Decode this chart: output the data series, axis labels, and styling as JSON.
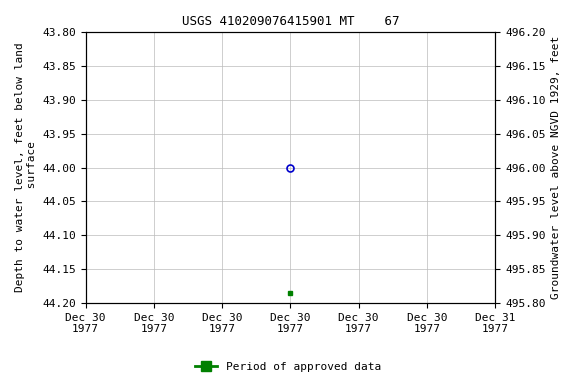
{
  "title": "USGS 410209076415901 MT    67",
  "left_ylabel": "Depth to water level, feet below land\n surface",
  "right_ylabel": "Groundwater level above NGVD 1929, feet",
  "ylim_left": [
    43.8,
    44.2
  ],
  "ylim_right_top": 496.2,
  "ylim_right_bottom": 495.8,
  "xlim": [
    0.0,
    6.0
  ],
  "x_data_blue": [
    3.0
  ],
  "y_data_blue": [
    44.0
  ],
  "x_data_green": [
    3.0
  ],
  "y_data_green": [
    44.185
  ],
  "xtick_positions": [
    0.0,
    1.0,
    2.0,
    3.0,
    4.0,
    5.0,
    6.0
  ],
  "xtick_labels": [
    "Dec 30\n1977",
    "Dec 30\n1977",
    "Dec 30\n1977",
    "Dec 30\n1977",
    "Dec 30\n1977",
    "Dec 30\n1977",
    "Dec 31\n1977"
  ],
  "ytick_left": [
    43.8,
    43.85,
    43.9,
    43.95,
    44.0,
    44.05,
    44.1,
    44.15,
    44.2
  ],
  "ytick_right_labels": [
    "496.20",
    "496.15",
    "496.10",
    "496.05",
    "496.00",
    "495.95",
    "495.90",
    "495.85",
    "495.80"
  ],
  "ytick_right_values": [
    43.8,
    43.85,
    43.9,
    43.95,
    44.0,
    44.05,
    44.1,
    44.15,
    44.2
  ],
  "blue_color": "#0000cc",
  "green_color": "#008000",
  "bg_color": "#ffffff",
  "grid_color": "#bbbbbb",
  "legend_label": "Period of approved data",
  "font_family": "monospace",
  "title_fontsize": 9,
  "tick_fontsize": 8,
  "label_fontsize": 8,
  "legend_fontsize": 8
}
